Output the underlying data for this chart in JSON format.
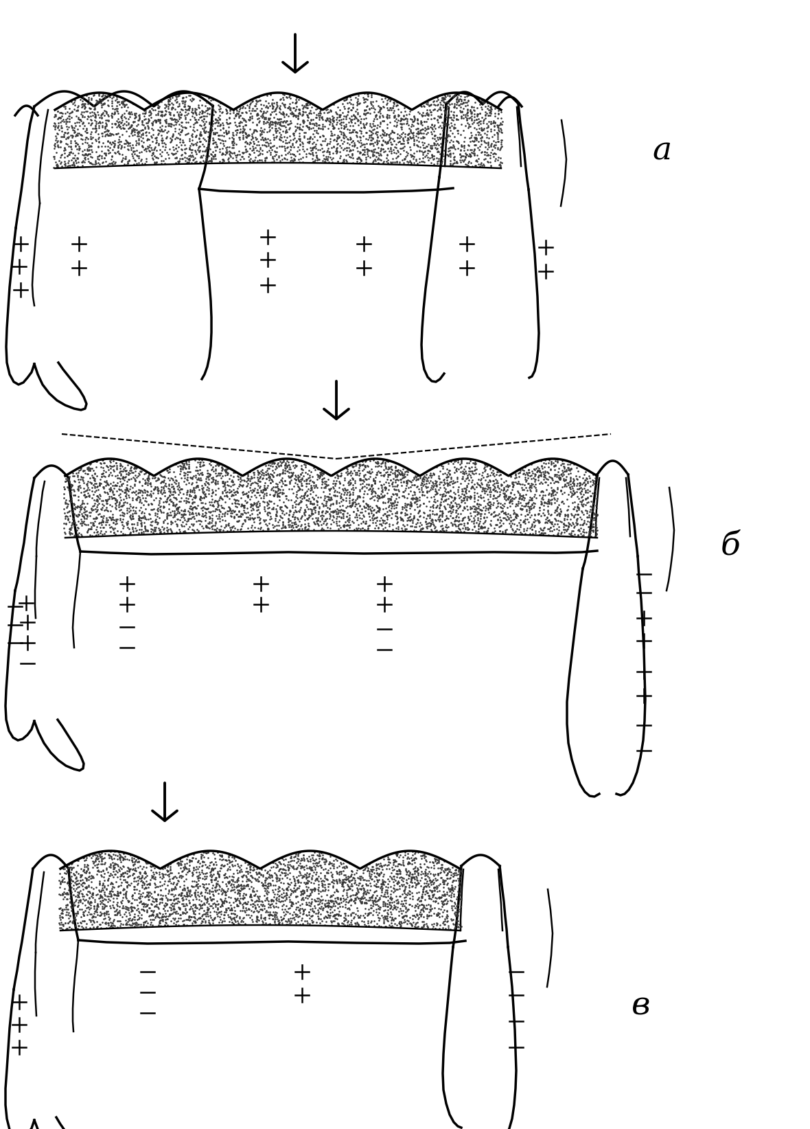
{
  "bg_color": "#ffffff",
  "line_color": "#000000",
  "label_a": "а",
  "label_b": "б",
  "label_v": "в",
  "figsize": [
    11.8,
    16.44
  ],
  "dpi": 100
}
